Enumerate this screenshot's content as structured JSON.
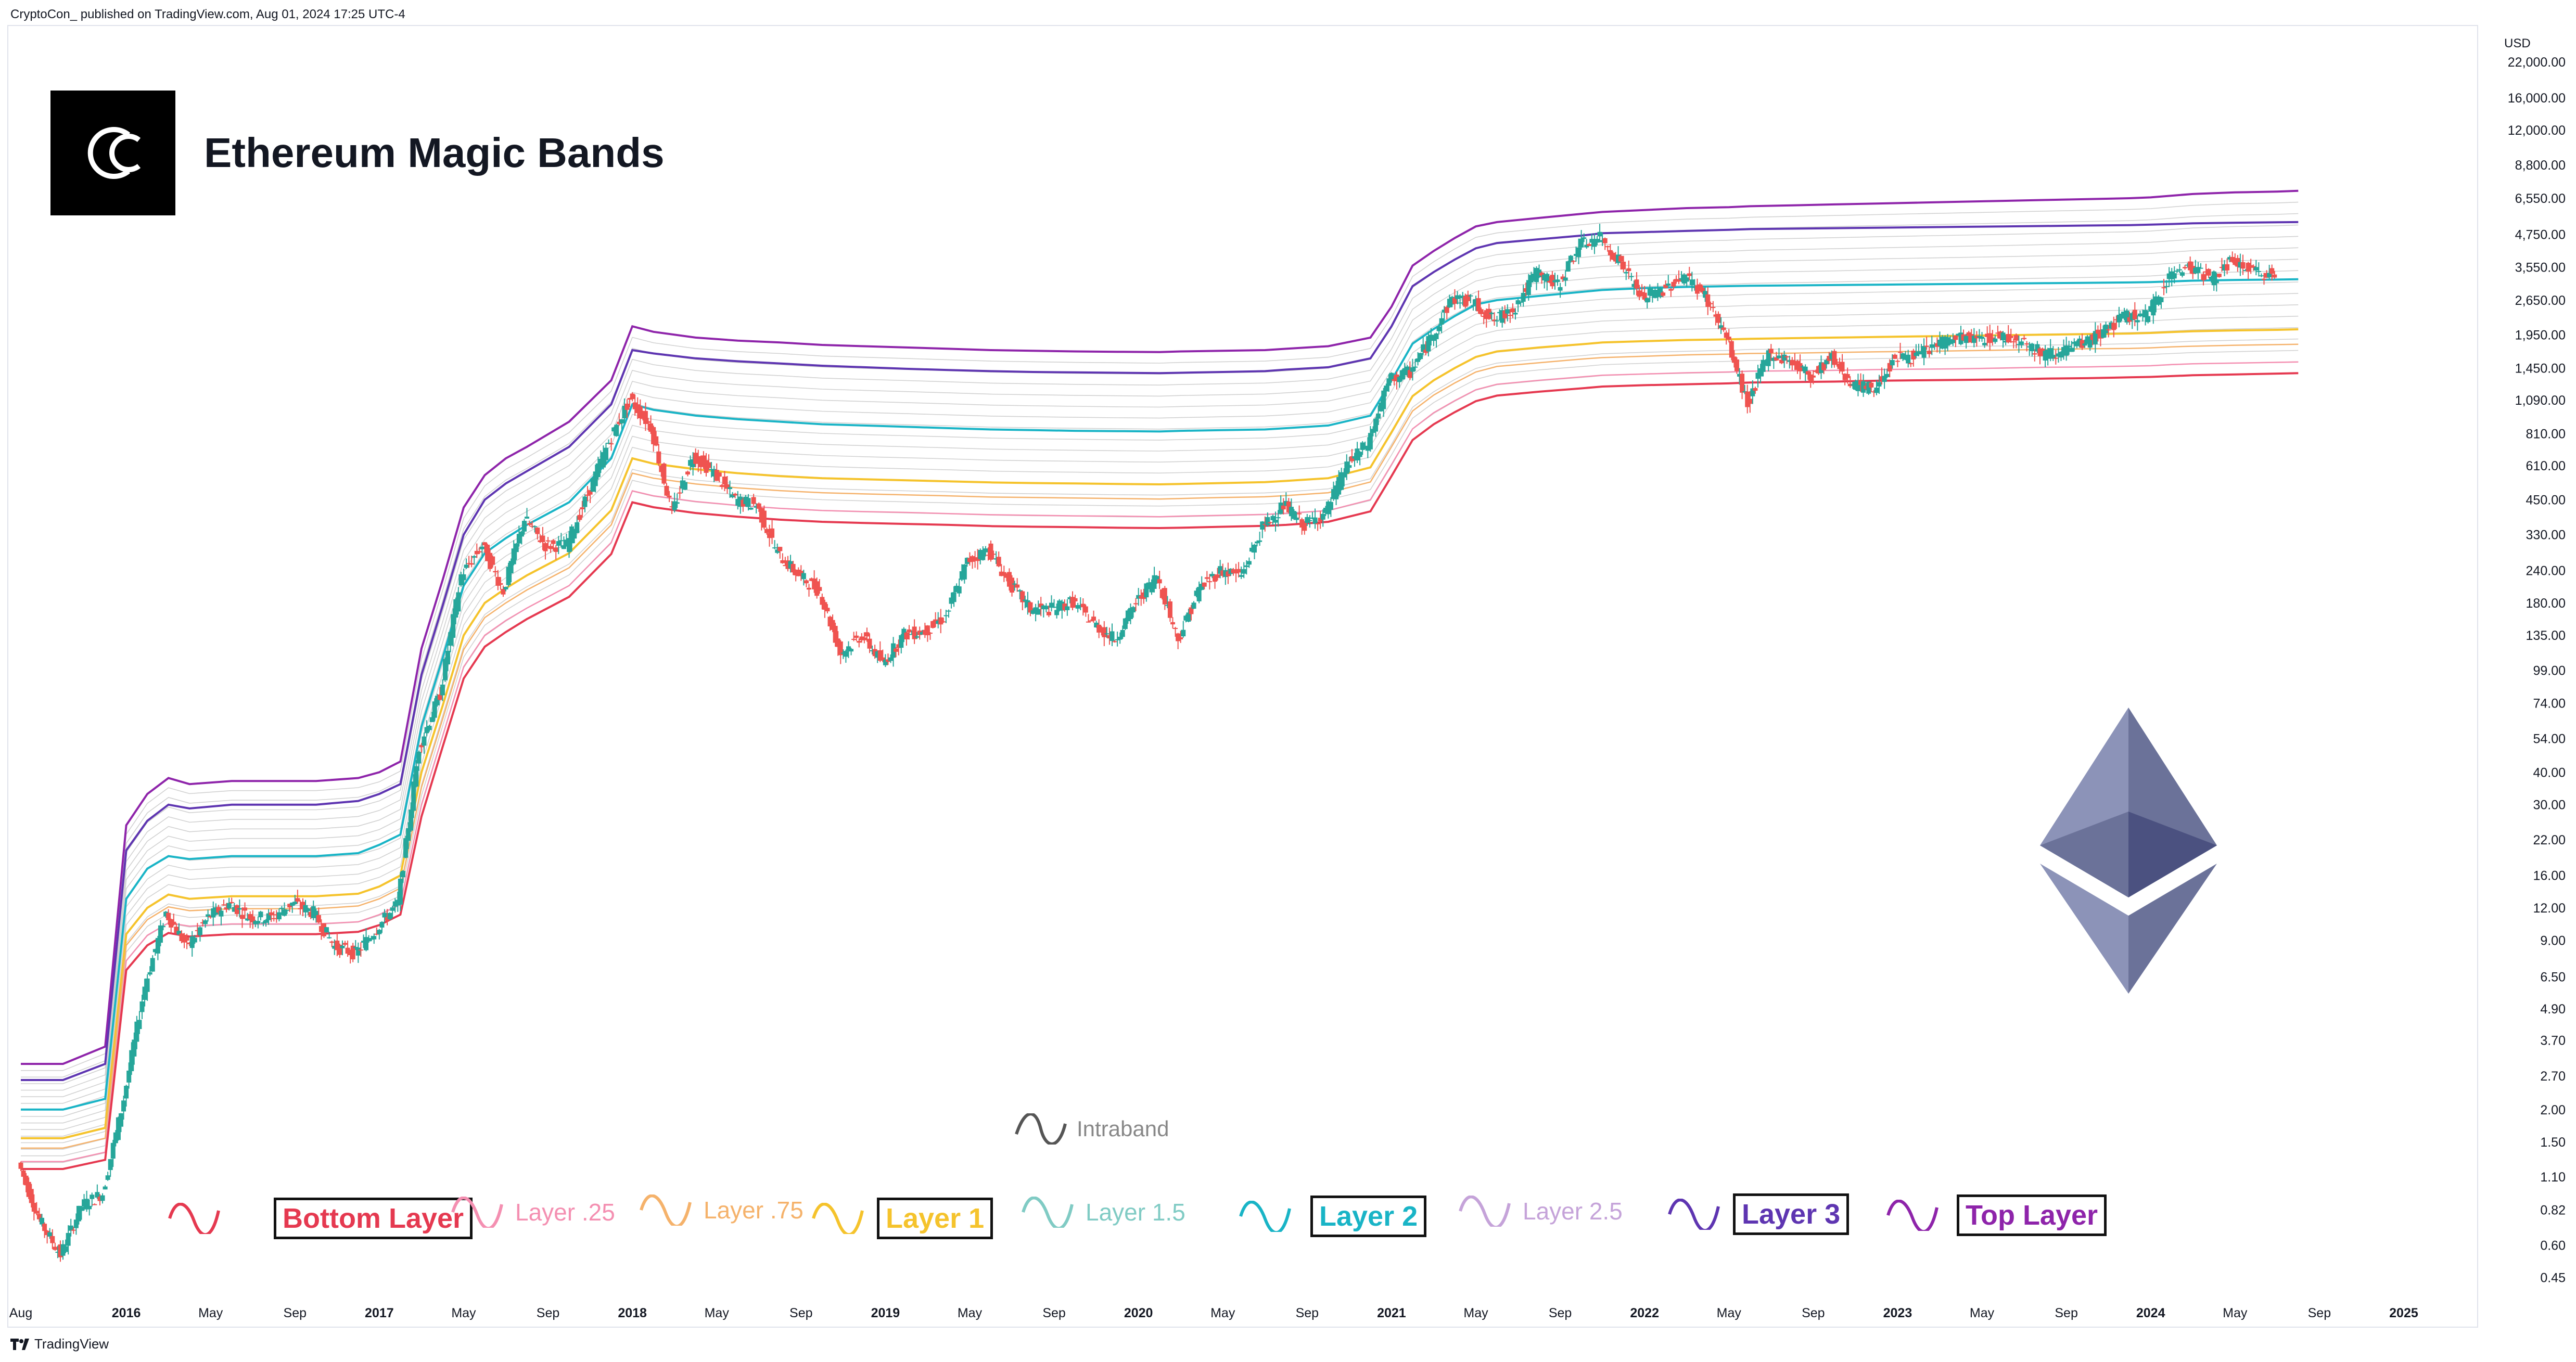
{
  "header": {
    "credit": "CryptoCon_ published on TradingView.com, Aug 01, 2024 17:25 UTC-4"
  },
  "title": "Ethereum Magic Bands",
  "brand": "TradingView",
  "colors": {
    "up": "#26a69a",
    "down": "#ef5350",
    "bottom": "#e53950",
    "l025": "#f48fb1",
    "l075": "#f5b26b",
    "l1": "#f5c32c",
    "l15": "#80cbc4",
    "l2": "#19b4c6",
    "l25": "#c5a3d9",
    "l3": "#5e35b1",
    "top": "#8e24aa",
    "intra": "#bdbdbd",
    "eth": "#6b7299"
  },
  "legend": {
    "intraband": "Intraband",
    "bottom": "Bottom Layer",
    "l025": "Layer .25",
    "l075": "Layer .75",
    "l1": "Layer 1",
    "l15": "Layer 1.5",
    "l2": "Layer 2",
    "l25": "Layer 2.5",
    "l3": "Layer 3",
    "top": "Top Layer"
  },
  "chart_data": {
    "type": "line",
    "title": "Ethereum Magic Bands",
    "y_scale": "log",
    "ylabel": "USD",
    "ylim": [
      0.35,
      24000
    ],
    "xlim": [
      "2015-08",
      "2025-03"
    ],
    "x_ticks": [
      "Aug",
      "2016",
      "May",
      "Sep",
      "2017",
      "May",
      "Sep",
      "2018",
      "May",
      "Sep",
      "2019",
      "May",
      "Sep",
      "2020",
      "May",
      "Sep",
      "2021",
      "May",
      "Sep",
      "2022",
      "May",
      "Sep",
      "2023",
      "May",
      "Sep",
      "2024",
      "May",
      "Sep",
      "2025"
    ],
    "y_ticks": [
      "22,000.00",
      "16,000.00",
      "12,000.00",
      "8,800.00",
      "6,550.00",
      "4,750.00",
      "3,550.00",
      "2,650.00",
      "1,950.00",
      "1,450.00",
      "1,090.00",
      "810.00",
      "610.00",
      "450.00",
      "330.00",
      "240.00",
      "180.00",
      "135.00",
      "99.00",
      "74.00",
      "54.00",
      "40.00",
      "30.00",
      "22.00",
      "16.00",
      "12.00",
      "9.00",
      "6.50",
      "4.90",
      "3.70",
      "2.70",
      "2.00",
      "1.50",
      "1.10",
      "0.82",
      "0.60",
      "0.45"
    ],
    "x_dates": [
      "2015-08",
      "2015-10",
      "2015-12",
      "2016-01",
      "2016-02",
      "2016-03",
      "2016-04",
      "2016-06",
      "2016-08",
      "2016-10",
      "2016-12",
      "2017-01",
      "2017-02",
      "2017-03",
      "2017-04",
      "2017-05",
      "2017-06",
      "2017-07",
      "2017-08",
      "2017-10",
      "2017-12",
      "2018-01",
      "2018-02",
      "2018-04",
      "2018-06",
      "2018-08",
      "2018-10",
      "2018-12",
      "2019-02",
      "2019-04",
      "2019-06",
      "2019-08",
      "2019-10",
      "2019-12",
      "2020-02",
      "2020-03",
      "2020-05",
      "2020-07",
      "2020-08",
      "2020-10",
      "2020-12",
      "2021-01",
      "2021-02",
      "2021-03",
      "2021-04",
      "2021-05",
      "2021-06",
      "2021-08",
      "2021-10",
      "2021-11",
      "2022-01",
      "2022-03",
      "2022-05",
      "2022-06",
      "2022-08",
      "2022-10",
      "2022-12",
      "2023-02",
      "2023-04",
      "2023-06",
      "2023-08",
      "2023-10",
      "2023-12",
      "2024-01",
      "2024-02",
      "2024-03",
      "2024-05",
      "2024-07",
      "2024-08"
    ],
    "series": [
      {
        "name": "Top Layer",
        "values": [
          3.0,
          3.0,
          3.5,
          25,
          33,
          38,
          36,
          37,
          37,
          37,
          38,
          40,
          44,
          120,
          220,
          420,
          560,
          650,
          720,
          900,
          1300,
          2100,
          2000,
          1900,
          1850,
          1820,
          1780,
          1760,
          1740,
          1720,
          1700,
          1690,
          1680,
          1675,
          1670,
          1680,
          1690,
          1700,
          1720,
          1760,
          1900,
          2500,
          3600,
          4100,
          4600,
          5100,
          5300,
          5500,
          5700,
          5800,
          5900,
          6000,
          6050,
          6100,
          6150,
          6200,
          6250,
          6300,
          6350,
          6400,
          6450,
          6500,
          6550,
          6600,
          6700,
          6800,
          6900,
          6950,
          7000
        ]
      },
      {
        "name": "Layer 3",
        "values": [
          2.6,
          2.6,
          3.0,
          20,
          26,
          30,
          29,
          30,
          30,
          30,
          31,
          33,
          36,
          95,
          175,
          330,
          450,
          520,
          580,
          720,
          1050,
          1700,
          1650,
          1580,
          1540,
          1510,
          1480,
          1460,
          1440,
          1425,
          1410,
          1400,
          1395,
          1390,
          1385,
          1390,
          1400,
          1410,
          1430,
          1460,
          1580,
          2100,
          3000,
          3400,
          3800,
          4200,
          4400,
          4550,
          4700,
          4800,
          4850,
          4900,
          4950,
          4980,
          5000,
          5020,
          5040,
          5060,
          5080,
          5100,
          5120,
          5140,
          5160,
          5180,
          5210,
          5240,
          5270,
          5290,
          5300
        ]
      },
      {
        "name": "Layer 2",
        "values": [
          2.0,
          2.0,
          2.2,
          13,
          17,
          19,
          18.5,
          19,
          19,
          19,
          19.5,
          21,
          23,
          60,
          110,
          210,
          280,
          320,
          360,
          440,
          650,
          1050,
          1000,
          950,
          920,
          900,
          880,
          870,
          860,
          850,
          840,
          835,
          830,
          828,
          825,
          830,
          835,
          840,
          850,
          870,
          950,
          1300,
          1800,
          2050,
          2300,
          2550,
          2650,
          2750,
          2850,
          2900,
          2950,
          2980,
          3000,
          3010,
          3020,
          3030,
          3040,
          3050,
          3060,
          3070,
          3080,
          3090,
          3100,
          3110,
          3130,
          3150,
          3170,
          3180,
          3190
        ]
      },
      {
        "name": "Layer 1",
        "values": [
          1.55,
          1.55,
          1.7,
          9.5,
          12,
          13.5,
          13,
          13.3,
          13.3,
          13.3,
          13.6,
          14.5,
          16,
          40,
          72,
          135,
          180,
          205,
          230,
          280,
          410,
          650,
          620,
          590,
          570,
          555,
          545,
          540,
          535,
          530,
          525,
          522,
          520,
          518,
          516,
          518,
          522,
          526,
          532,
          545,
          600,
          820,
          1130,
          1300,
          1450,
          1600,
          1680,
          1740,
          1790,
          1820,
          1840,
          1860,
          1870,
          1880,
          1890,
          1900,
          1910,
          1920,
          1930,
          1940,
          1950,
          1960,
          1970,
          1980,
          1995,
          2010,
          2025,
          2035,
          2045
        ]
      },
      {
        "name": "Layer .75",
        "values": [
          1.42,
          1.42,
          1.55,
          8.6,
          10.8,
          12.1,
          11.7,
          11.9,
          11.9,
          11.9,
          12.2,
          13,
          14.3,
          35,
          64,
          119,
          158,
          180,
          202,
          246,
          360,
          570,
          545,
          518,
          500,
          488,
          479,
          474,
          470,
          466,
          461,
          459,
          457,
          455,
          453,
          455,
          459,
          462,
          467,
          479,
          527,
          720,
          990,
          1140,
          1270,
          1400,
          1470,
          1520,
          1570,
          1590,
          1610,
          1630,
          1640,
          1650,
          1655,
          1665,
          1675,
          1680,
          1690,
          1700,
          1710,
          1720,
          1725,
          1735,
          1750,
          1760,
          1775,
          1785,
          1790
        ]
      },
      {
        "name": "Layer .25",
        "values": [
          1.26,
          1.26,
          1.37,
          7.5,
          9.4,
          10.5,
          10.2,
          10.4,
          10.4,
          10.4,
          10.6,
          11.3,
          12.4,
          30,
          55,
          102,
          135,
          154,
          172,
          210,
          308,
          487,
          466,
          443,
          428,
          417,
          409,
          405,
          402,
          398,
          394,
          392,
          390,
          389,
          387,
          389,
          392,
          395,
          399,
          409,
          450,
          615,
          845,
          975,
          1085,
          1195,
          1255,
          1300,
          1340,
          1360,
          1375,
          1390,
          1400,
          1410,
          1415,
          1420,
          1430,
          1435,
          1440,
          1450,
          1460,
          1465,
          1475,
          1480,
          1495,
          1505,
          1515,
          1525,
          1530
        ]
      },
      {
        "name": "Bottom Layer",
        "values": [
          1.18,
          1.18,
          1.28,
          6.9,
          8.6,
          9.6,
          9.3,
          9.5,
          9.5,
          9.5,
          9.7,
          10.3,
          11.3,
          27,
          50,
          92,
          122,
          139,
          156,
          190,
          278,
          440,
          421,
          400,
          387,
          377,
          370,
          366,
          363,
          360,
          356,
          354,
          353,
          351,
          350,
          351,
          354,
          357,
          360,
          370,
          406,
          555,
          765,
          880,
          980,
          1080,
          1135,
          1175,
          1210,
          1230,
          1245,
          1255,
          1265,
          1275,
          1280,
          1285,
          1295,
          1300,
          1305,
          1310,
          1320,
          1325,
          1335,
          1340,
          1350,
          1360,
          1370,
          1380,
          1385
        ]
      }
    ],
    "price": {
      "name": "ETH",
      "dates": [
        "2015-08",
        "2015-09",
        "2015-10",
        "2015-11",
        "2015-12",
        "2016-01",
        "2016-02",
        "2016-03",
        "2016-04",
        "2016-05",
        "2016-06",
        "2016-07",
        "2016-08",
        "2016-09",
        "2016-10",
        "2016-11",
        "2016-12",
        "2017-01",
        "2017-02",
        "2017-03",
        "2017-04",
        "2017-05",
        "2017-06",
        "2017-07",
        "2017-08",
        "2017-09",
        "2017-10",
        "2017-11",
        "2017-12",
        "2018-01",
        "2018-02",
        "2018-03",
        "2018-04",
        "2018-05",
        "2018-06",
        "2018-07",
        "2018-08",
        "2018-09",
        "2018-10",
        "2018-11",
        "2018-12",
        "2019-01",
        "2019-02",
        "2019-03",
        "2019-04",
        "2019-05",
        "2019-06",
        "2019-07",
        "2019-08",
        "2019-09",
        "2019-10",
        "2019-11",
        "2019-12",
        "2020-01",
        "2020-02",
        "2020-03",
        "2020-04",
        "2020-05",
        "2020-06",
        "2020-07",
        "2020-08",
        "2020-09",
        "2020-10",
        "2020-11",
        "2020-12",
        "2021-01",
        "2021-02",
        "2021-03",
        "2021-04",
        "2021-05",
        "2021-06",
        "2021-07",
        "2021-08",
        "2021-09",
        "2021-10",
        "2021-11",
        "2021-12",
        "2022-01",
        "2022-02",
        "2022-03",
        "2022-04",
        "2022-05",
        "2022-06",
        "2022-07",
        "2022-08",
        "2022-09",
        "2022-10",
        "2022-11",
        "2022-12",
        "2023-01",
        "2023-02",
        "2023-03",
        "2023-04",
        "2023-05",
        "2023-06",
        "2023-07",
        "2023-08",
        "2023-09",
        "2023-10",
        "2023-11",
        "2023-12",
        "2024-01",
        "2024-02",
        "2024-03",
        "2024-04",
        "2024-05",
        "2024-06",
        "2024-07"
      ],
      "values": [
        1.25,
        0.75,
        0.55,
        0.85,
        0.95,
        2.2,
        6.0,
        11.5,
        8.5,
        11.0,
        12.5,
        11.0,
        11.0,
        12.5,
        11.5,
        8.5,
        8.0,
        10.0,
        12.5,
        50,
        80,
        230,
        300,
        200,
        380,
        300,
        300,
        470,
        750,
        1100,
        860,
        400,
        670,
        570,
        450,
        430,
        280,
        230,
        200,
        115,
        135,
        105,
        136,
        140,
        160,
        260,
        290,
        215,
        170,
        170,
        182,
        150,
        130,
        180,
        230,
        130,
        205,
        240,
        230,
        350,
        430,
        360,
        400,
        610,
        740,
        1300,
        1400,
        1900,
        2700,
        2600,
        2200,
        2500,
        3400,
        3000,
        4300,
        4600,
        3700,
        2700,
        2900,
        3300,
        2750,
        1900,
        1050,
        1650,
        1550,
        1350,
        1600,
        1250,
        1200,
        1600,
        1600,
        1800,
        1900,
        1870,
        1930,
        1860,
        1640,
        1700,
        1800,
        2050,
        2300,
        2300,
        3300,
        3600,
        3200,
        3750,
        3400,
        3300
      ]
    }
  }
}
